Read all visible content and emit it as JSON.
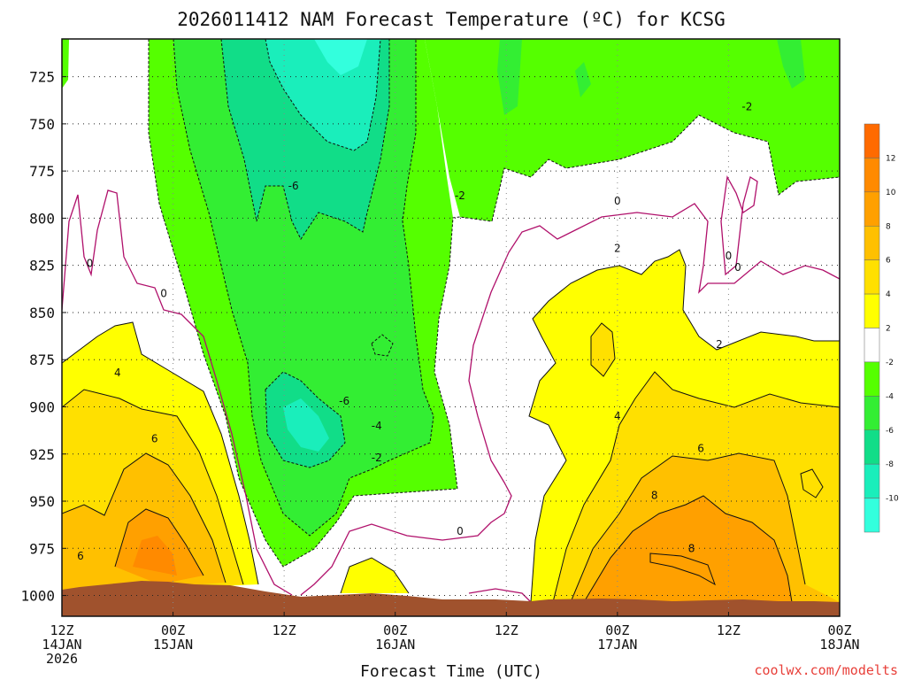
{
  "chart_data": {
    "type": "contour",
    "title": "2026011412 NAM Forecast Temperature (ºC) for KCSG",
    "xlabel": "Forecast Time (UTC)",
    "ylabel": "",
    "credit": "coolwx.com/modelts",
    "x_ticks": [
      {
        "hour": 0,
        "line1": "12Z",
        "line2": "14JAN",
        "line3": "2026"
      },
      {
        "hour": 12,
        "line1": "00Z",
        "line2": "15JAN",
        "line3": ""
      },
      {
        "hour": 24,
        "line1": "12Z",
        "line2": "",
        "line3": ""
      },
      {
        "hour": 36,
        "line1": "00Z",
        "line2": "16JAN",
        "line3": ""
      },
      {
        "hour": 48,
        "line1": "12Z",
        "line2": "",
        "line3": ""
      },
      {
        "hour": 60,
        "line1": "00Z",
        "line2": "17JAN",
        "line3": ""
      },
      {
        "hour": 72,
        "line1": "12Z",
        "line2": "",
        "line3": ""
      },
      {
        "hour": 84,
        "line1": "00Z",
        "line2": "18JAN",
        "line3": ""
      }
    ],
    "y_ticks": [
      725,
      750,
      775,
      800,
      825,
      850,
      875,
      900,
      925,
      950,
      975,
      1000
    ],
    "x_range_hours": [
      0,
      84
    ],
    "y_range_hpa": [
      705,
      1011
    ],
    "colorbar_levels": [
      -12,
      -10,
      -8,
      -6,
      -4,
      -2,
      2,
      4,
      6,
      8,
      10,
      12,
      14
    ],
    "colorbar_labels": [
      "12",
      "10",
      "8",
      "6",
      "4",
      "2",
      "-2",
      "-4",
      "-6",
      "-8",
      "-10"
    ],
    "fill_colors": {
      "lt_-10": "#33ffdd",
      "-10_-8": "#1aeebb",
      "-8_-6": "#11dd88",
      "-6_-4": "#33ee33",
      "-4_-2": "#55ff00",
      "-2_2": "#ffffff",
      "2_4": "#ffff00",
      "4_6": "#ffe000",
      "6_8": "#ffc000",
      "8_10": "#ffa000",
      "10_12": "#ff8a00",
      "gt_12": "#ff6a00"
    },
    "ground_color": "#a0522d",
    "zero_line_color": "#b0106b",
    "contour_labels": [
      {
        "text": "0",
        "hour": 3,
        "hpa": 824
      },
      {
        "text": "0",
        "hour": 11,
        "hpa": 840
      },
      {
        "text": "4",
        "hour": 6,
        "hpa": 882
      },
      {
        "text": "6",
        "hour": 10,
        "hpa": 917
      },
      {
        "text": "6",
        "hour": 2,
        "hpa": 979
      },
      {
        "text": "-6",
        "hour": 25,
        "hpa": 783
      },
      {
        "text": "-6",
        "hour": 30.5,
        "hpa": 897
      },
      {
        "text": "-4",
        "hour": 34,
        "hpa": 910
      },
      {
        "text": "-2",
        "hour": 34,
        "hpa": 927
      },
      {
        "text": "-2",
        "hour": 43,
        "hpa": 788
      },
      {
        "text": "0",
        "hour": 43,
        "hpa": 966
      },
      {
        "text": "0",
        "hour": 60,
        "hpa": 791
      },
      {
        "text": "2",
        "hour": 60,
        "hpa": 816
      },
      {
        "text": "4",
        "hour": 60,
        "hpa": 905
      },
      {
        "text": "6",
        "hour": 69,
        "hpa": 922
      },
      {
        "text": "8",
        "hour": 64,
        "hpa": 947
      },
      {
        "text": "8",
        "hour": 68,
        "hpa": 975
      },
      {
        "text": "-2",
        "hour": 74,
        "hpa": 741
      },
      {
        "text": "0",
        "hour": 72,
        "hpa": 820
      },
      {
        "text": "0",
        "hour": 73,
        "hpa": 826
      },
      {
        "text": "2",
        "hour": 71,
        "hpa": 867
      }
    ]
  }
}
